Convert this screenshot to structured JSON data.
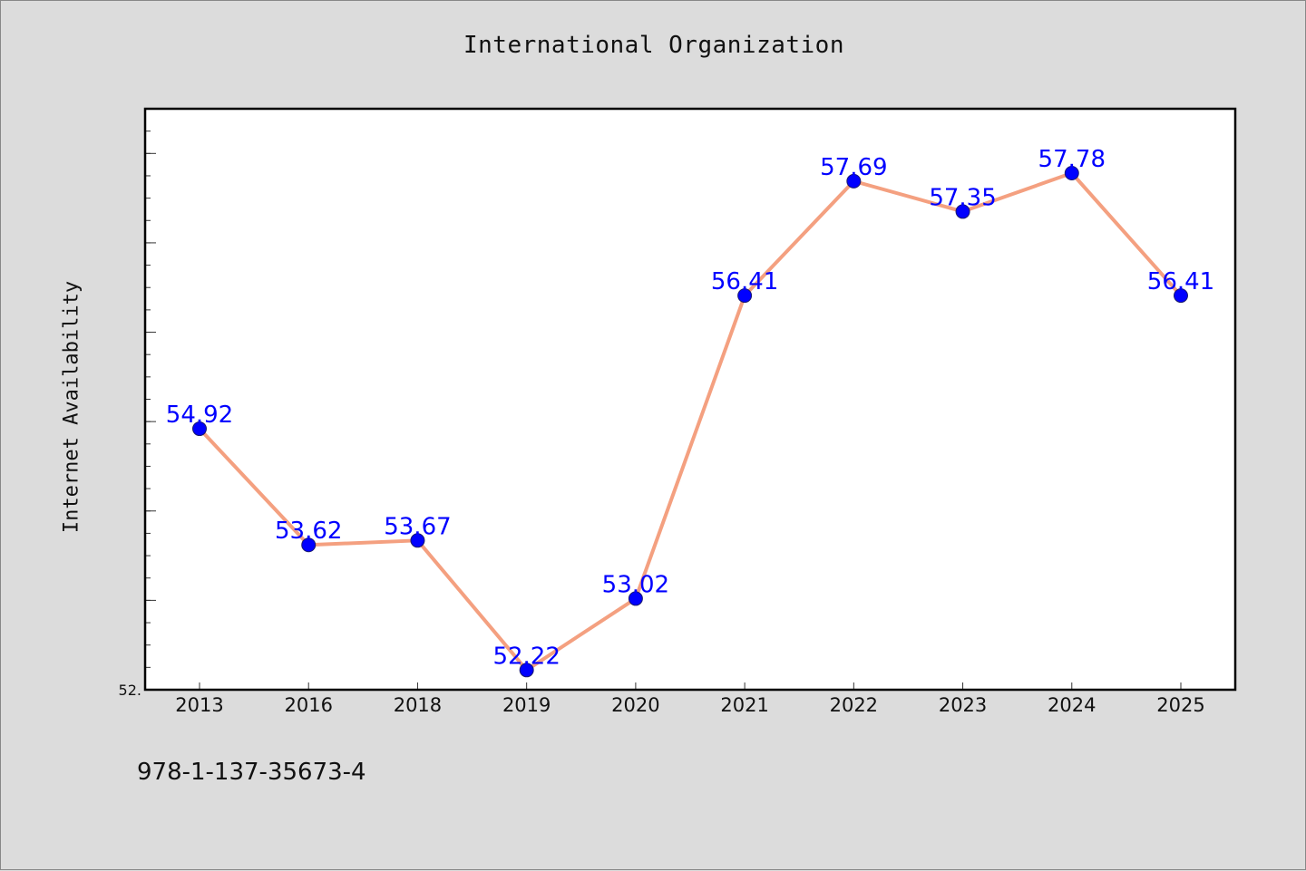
{
  "chart_data": {
    "type": "line",
    "title": "International Organization",
    "xlabel": "",
    "ylabel": "Internet Availability",
    "categories": [
      "2013",
      "2016",
      "2018",
      "2019",
      "2020",
      "2021",
      "2022",
      "2023",
      "2024",
      "2025"
    ],
    "series": [
      {
        "values": [
          54.92,
          53.62,
          53.67,
          52.22,
          53.02,
          56.41,
          57.69,
          57.35,
          57.78,
          56.41
        ],
        "data_labels": [
          "54.92",
          "53.62",
          "53.67",
          "52.22",
          "53.02",
          "56.41",
          "57.69",
          "57.35",
          "57.78",
          "56.41"
        ],
        "line_color": "#f4a080",
        "marker_color": "#0000ff",
        "label_color": "#0000ff"
      }
    ],
    "ylim": [
      52.0,
      58.5
    ],
    "y_tick_label": "52.",
    "grid": false,
    "legend": "none"
  },
  "footer": {
    "isbn": "978-1-137-35673-4"
  }
}
